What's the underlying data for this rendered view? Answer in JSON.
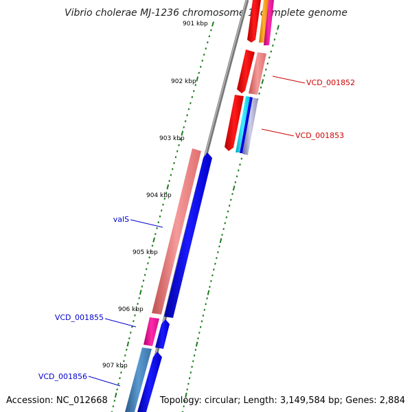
{
  "title": "Vibrio cholerae MJ-1236 chromosome 1, complete genome",
  "footer": {
    "accession": "Accession: NC_012668",
    "topology": "Topology: circular; Length: 3,149,584 bp; Genes: 2,884"
  },
  "ticks": [
    {
      "label": "901 kbp"
    },
    {
      "label": "902 kbp"
    },
    {
      "label": "903 kbp"
    },
    {
      "label": "904 kbp"
    },
    {
      "label": "905 kbp"
    },
    {
      "label": "906 kbp"
    },
    {
      "label": "907 kbp"
    }
  ],
  "gene_labels": [
    {
      "name": "VCD_001852",
      "color": "#cc0000"
    },
    {
      "name": "VCD_001853",
      "color": "#cc0000"
    },
    {
      "name": "valS",
      "color": "#0000cc"
    },
    {
      "name": "VCD_001855",
      "color": "#0000cc"
    },
    {
      "name": "VCD_001856",
      "color": "#0000cc"
    }
  ],
  "colors": {
    "backbone": "#888888",
    "tick": "#1a7a1a",
    "forward_gene": "#ff0000",
    "forward_gene_light": "#f08080",
    "reverse_gene": "#0000ff",
    "reverse_gene_light": "#f08080",
    "accent_magenta": "#ff1aa0",
    "accent_orange": "#ff9900",
    "accent_cyan": "#00e5ff",
    "accent_steel": "#4682b4"
  }
}
